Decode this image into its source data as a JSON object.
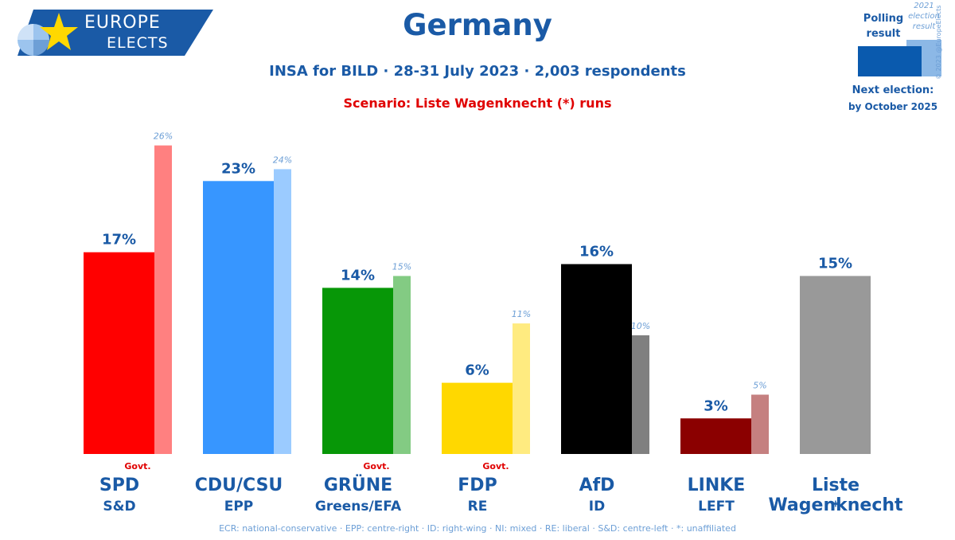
{
  "logo": {
    "word1": "EUROPE",
    "word2": "ELECTS"
  },
  "title": "Germany",
  "subtitle": "INSA for BILD · 28-31 July 2023 · 2,003 respondents",
  "scenario": "Scenario: Liste Wagenknecht (*) runs",
  "legend": {
    "polling_label": "Polling result",
    "previous_label": "2021 election result",
    "next_election_title": "Next election:",
    "next_election_date": "by October 2025",
    "copyright": "© 2023 @EuropeElects"
  },
  "chart_data": {
    "type": "bar",
    "title": "Germany",
    "subtitle": "INSA for BILD · 28-31 July 2023 · 2,003 respondents",
    "ylim": [
      0,
      28
    ],
    "grid": false,
    "legend_position": "top-right",
    "categories": [
      "SPD",
      "CDU/CSU",
      "GRÜNE",
      "FDP",
      "AfD",
      "LINKE",
      "Liste Wagenknecht"
    ],
    "groups": [
      "S&D",
      "EPP",
      "Greens/EFA",
      "RE",
      "ID",
      "LEFT",
      "*"
    ],
    "government": [
      true,
      false,
      true,
      true,
      false,
      false,
      false
    ],
    "govt_label": "Govt.",
    "series": [
      {
        "name": "Polling result",
        "values": [
          17,
          23,
          14,
          6,
          16,
          3,
          15
        ]
      },
      {
        "name": "2021 election result",
        "values": [
          26,
          24,
          15,
          11,
          10,
          5,
          null
        ]
      }
    ],
    "colors_main": [
      "#ff0000",
      "#3796ff",
      "#079707",
      "#ffd800",
      "#000000",
      "#8b0000",
      "#999999"
    ],
    "colors_prev": [
      "#ff8080",
      "#9bcbff",
      "#83cb83",
      "#ffeb80",
      "#808080",
      "#c58080",
      "#cccccc"
    ],
    "value_labels_main": [
      "17%",
      "23%",
      "14%",
      "6%",
      "16%",
      "3%",
      "15%"
    ],
    "value_labels_prev": [
      "26%",
      "24%",
      "15%",
      "11%",
      "10%",
      "5%",
      ""
    ]
  },
  "footer": "ECR: national-conservative · EPP: centre-right · ID: right-wing · NI: mixed · RE: liberal · S&D: centre-left · *: unaffiliated",
  "colors": {
    "brand_blue": "#1a5aa6",
    "accent_red": "#e00000",
    "light_blue": "#6d9fd6"
  }
}
